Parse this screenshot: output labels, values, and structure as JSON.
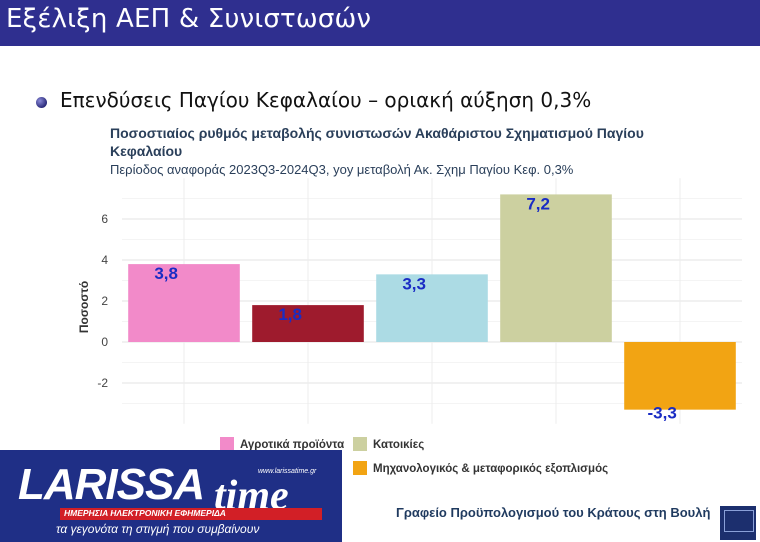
{
  "header": {
    "title": "Εξέλιξη ΑΕΠ & Συνιστωσών"
  },
  "bullet": {
    "text": "Επενδύσεις Παγίου Κεφαλαίου – οριακή αύξηση 0,3%"
  },
  "chart_data": {
    "type": "bar",
    "title": "Ποσοστιαίος ρυθμός μεταβολής συνιστωσών Ακαθάριστου Σχηματισμού Παγίου Κεφαλαίου",
    "subtitle": "Περίοδος αναφοράς 2023Q3-2024Q3, yoy μεταβολή Ακ. Σχημ Παγίου Κεφ. 0,3%",
    "ylabel": "Ποσοστό",
    "xlabel": "",
    "ylim": [
      -3.4,
      7.6
    ],
    "yticks": [
      -2,
      0,
      2,
      4,
      6
    ],
    "ytick_labels": [
      "-2",
      "0",
      "2",
      "4",
      "6"
    ],
    "grid": true,
    "legend_position": "bottom",
    "values": [
      3.8,
      1.8,
      3.3,
      7.2,
      -3.3
    ],
    "value_labels": [
      "3,8",
      "1,8",
      "3,3",
      "7,2",
      "-3,3"
    ],
    "colors": [
      "#f28ac9",
      "#9e1b2d",
      "#acdbe4",
      "#ccd0a0",
      "#f2a413"
    ],
    "label_color": "#1a2cc4",
    "legend": [
      {
        "label": "Αγροτικά προϊόντα",
        "color": "#f28ac9"
      },
      {
        "label": "Κατοικίες",
        "color": "#ccd0a0"
      },
      {
        "label": "Μηχανολογικός & μεταφορικός εξοπλισμός",
        "color": "#f2a413"
      }
    ]
  },
  "source": {
    "text": "Γραφείο Προϋπολογισμού του Κράτους στη Βουλή"
  },
  "logo": {
    "url": "www.larissatime.gr",
    "word1": "LARISSA",
    "word2": "time",
    "tagline": "ΗΜΕΡΗΣΙΑ ΗΛΕΚΤΡΟΝΙΚΗ ΕΦΗΜΕΡΙΔΑ",
    "slogan": "τα γεγονότα τη στιγμή που συμβαίνουν"
  }
}
